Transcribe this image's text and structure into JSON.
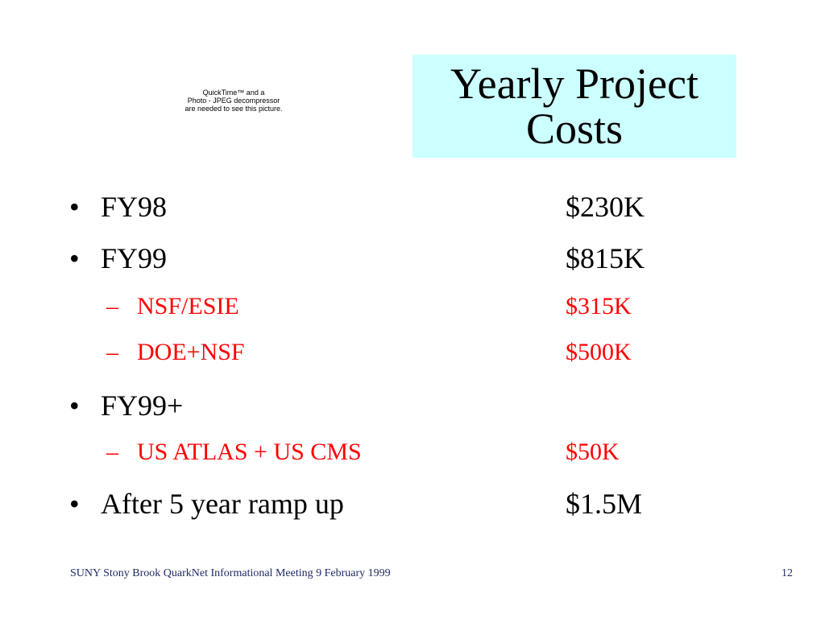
{
  "placeholder": {
    "line1": "QuickTime™ and a",
    "line2": "Photo - JPEG decompressor",
    "line3": "are needed to see this picture."
  },
  "title": {
    "line1": "Yearly Project",
    "line2": "Costs",
    "background": "#ccffff"
  },
  "bullets": [
    {
      "marker": "•",
      "label": "FY98",
      "value": "$230K"
    },
    {
      "marker": "•",
      "label": "FY99",
      "value": "$815K"
    },
    {
      "marker": "–",
      "label": "NSF/ESIE",
      "value": "$315K"
    },
    {
      "marker": "–",
      "label": "DOE+NSF",
      "value": "$500K"
    },
    {
      "marker": "•",
      "label": "FY99+",
      "value": ""
    },
    {
      "marker": "–",
      "label": "US ATLAS + US CMS",
      "value": "$50K"
    },
    {
      "marker": "•",
      "label": "After 5 year ramp up",
      "value": "$1.5M"
    }
  ],
  "colors": {
    "sub_item": "#ff0000",
    "footer": "#1f2a66"
  },
  "footer": {
    "text": "SUNY Stony Brook QuarkNet Informational Meeting  9 February 1999",
    "page_number": "12"
  }
}
